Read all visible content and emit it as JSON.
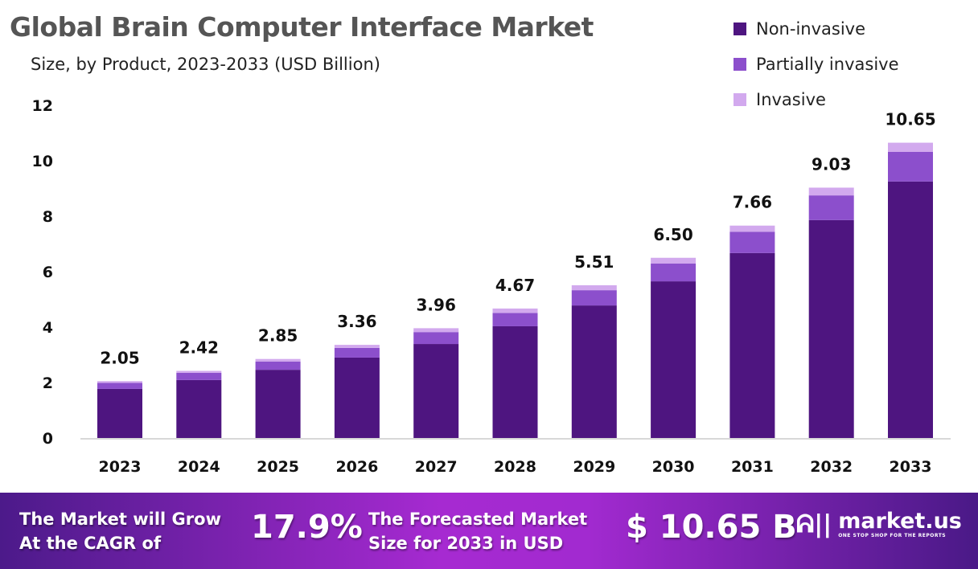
{
  "chart_data": {
    "type": "bar",
    "stacked": true,
    "title": "Global Brain Computer Interface Market",
    "subtitle": "Size, by Product, 2023-2033 (USD Billion)",
    "categories": [
      "2023",
      "2024",
      "2025",
      "2026",
      "2027",
      "2028",
      "2029",
      "2030",
      "2031",
      "2032",
      "2033"
    ],
    "series": [
      {
        "name": "Non-invasive",
        "color": "#4e1580",
        "values": [
          1.77,
          2.09,
          2.46,
          2.9,
          3.39,
          4.03,
          4.78,
          5.65,
          6.67,
          7.86,
          9.25
        ]
      },
      {
        "name": "Partially invasive",
        "color": "#8c4fcc",
        "values": [
          0.22,
          0.26,
          0.3,
          0.35,
          0.43,
          0.48,
          0.55,
          0.64,
          0.77,
          0.89,
          1.07
        ]
      },
      {
        "name": "Invasive",
        "color": "#d2a9ee",
        "values": [
          0.06,
          0.07,
          0.09,
          0.11,
          0.14,
          0.16,
          0.18,
          0.21,
          0.22,
          0.28,
          0.33
        ]
      }
    ],
    "totals": [
      "2.05",
      "2.42",
      "2.85",
      "3.36",
      "3.96",
      "4.67",
      "5.51",
      "6.50",
      "7.66",
      "9.03",
      "10.65"
    ],
    "yticks": [
      "0",
      "2",
      "4",
      "6",
      "8",
      "10",
      "12"
    ],
    "ylim": [
      0,
      12
    ],
    "grid": false,
    "legend": "top-right"
  },
  "footer": {
    "cagr_text_1": "The Market will Grow",
    "cagr_text_2": "At the CAGR of",
    "cagr_value": "17.9%",
    "forecast_text_1": "The Forecasted Market",
    "forecast_text_2": "Size for 2033 in USD",
    "forecast_value": "$ 10.65 B",
    "brand": "market.us",
    "tagline": "ONE STOP SHOP FOR THE REPORTS"
  }
}
